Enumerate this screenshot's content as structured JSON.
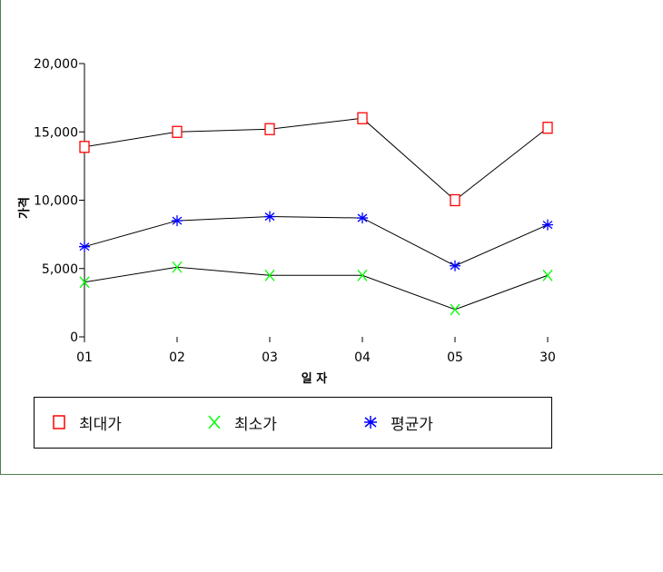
{
  "chart_data": {
    "type": "line",
    "categories": [
      "01",
      "02",
      "03",
      "04",
      "05",
      "30"
    ],
    "series": [
      {
        "name": "최대가",
        "values": [
          13900,
          15000,
          15200,
          16000,
          10000,
          15300
        ],
        "color": "#ff0000",
        "marker": "square"
      },
      {
        "name": "최소가",
        "values": [
          4000,
          5100,
          4500,
          4500,
          2000,
          4500
        ],
        "color": "#00ff00",
        "marker": "x"
      },
      {
        "name": "평균가",
        "values": [
          6600,
          8500,
          8800,
          8700,
          5200,
          8200
        ],
        "color": "#0000ff",
        "marker": "asterisk"
      }
    ],
    "xlabel": "일 자",
    "ylabel": "가격",
    "ylim": [
      0,
      20000
    ],
    "yticks": [
      "0",
      "5,000",
      "10,000",
      "15,000",
      "20,000"
    ],
    "line_color": "#000000",
    "legend_position": "bottom",
    "grid": false
  }
}
